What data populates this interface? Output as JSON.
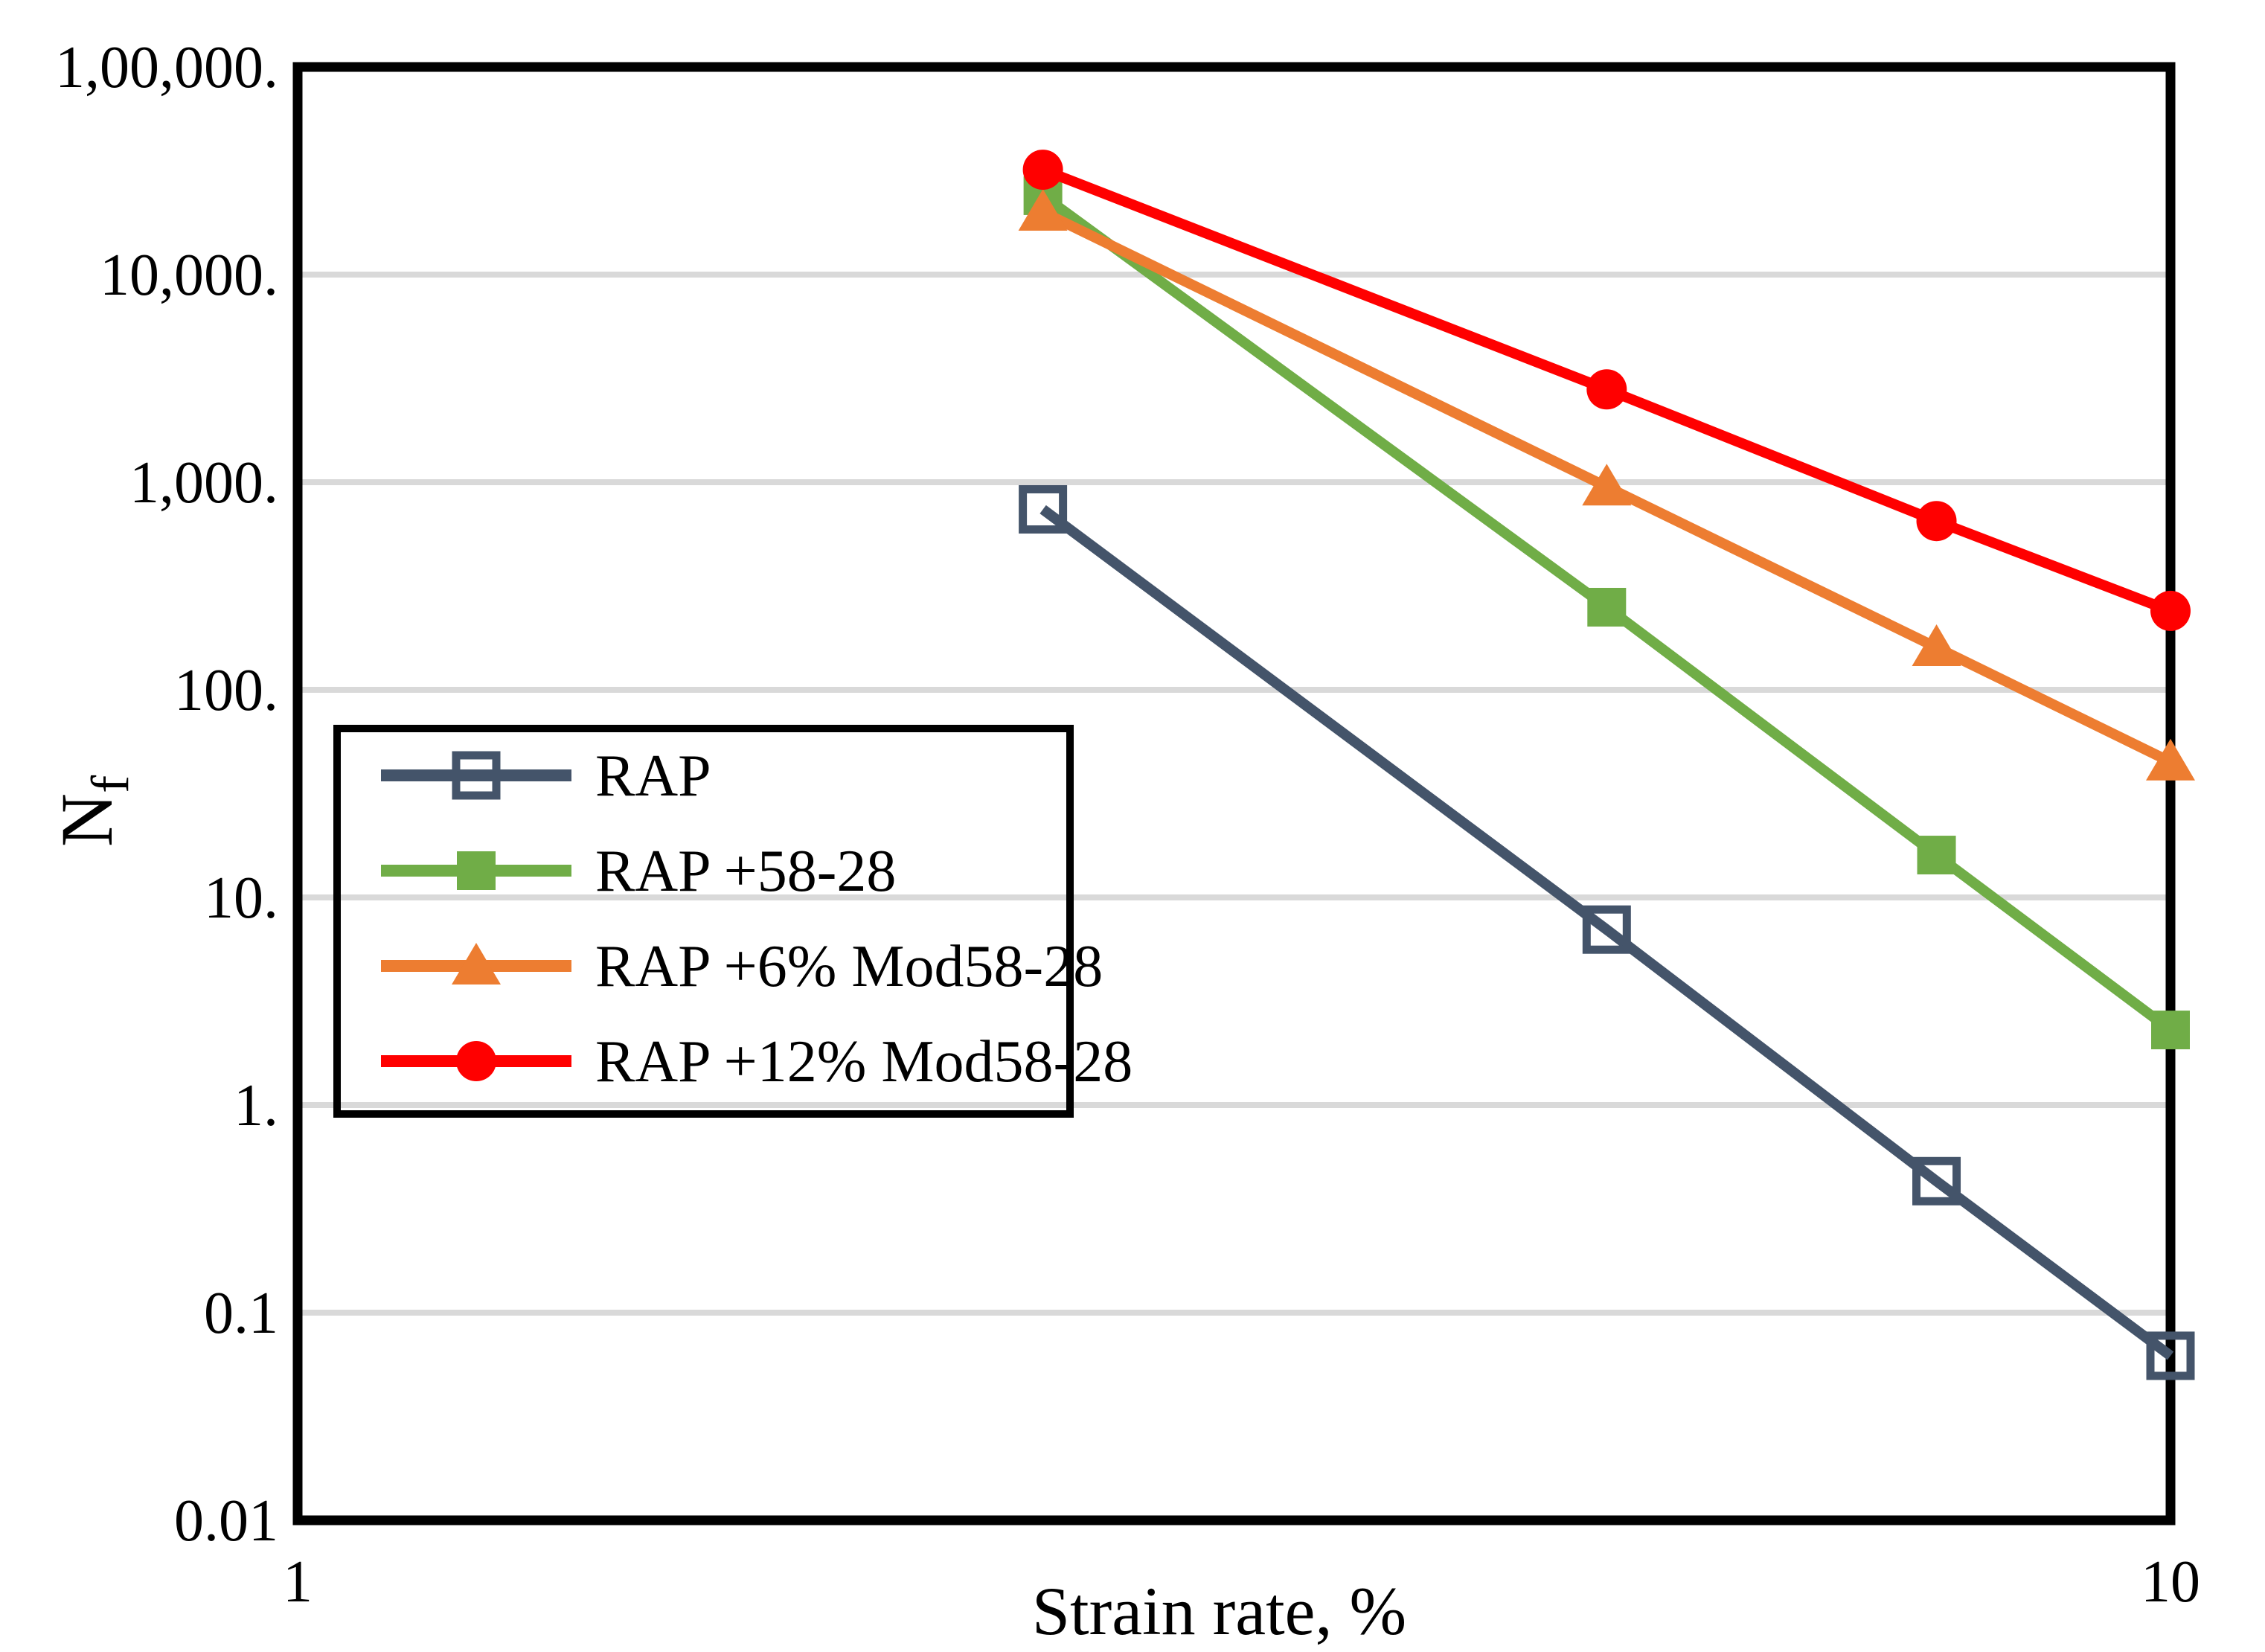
{
  "chart_data": {
    "type": "line",
    "title": "",
    "xlabel": "Strain rate, %",
    "ylabel": "Nf",
    "ylabel_base": "N",
    "ylabel_sub": "f",
    "x_scale": "log",
    "y_scale": "log",
    "xlim": [
      1,
      10
    ],
    "ylim": [
      0.01,
      100000
    ],
    "grid": true,
    "grid_color": "#D9D9D9",
    "axis_color": "#000000",
    "background_color": "#FFFFFF",
    "legend_position": "inside-left",
    "x": [
      2.5,
      5,
      7.5,
      10
    ],
    "series": [
      {
        "name": "RAP",
        "color": "#44546A",
        "marker": "square-open",
        "values": [
          740,
          7,
          0.43,
          0.062
        ]
      },
      {
        "name": "RAP +58-28",
        "color": "#70AD47",
        "marker": "square",
        "values": [
          24000,
          250,
          16,
          2.3
        ]
      },
      {
        "name": "RAP +6% Mod58-28",
        "color": "#ED7D31",
        "marker": "triangle",
        "values": [
          20000,
          950,
          160,
          45
        ]
      },
      {
        "name": "RAP +12% Mod58-28",
        "color": "#FF0000",
        "marker": "circle",
        "values": [
          32000,
          2800,
          650,
          240
        ]
      }
    ],
    "y_ticks": [
      {
        "label": "1,00,000.",
        "value": 100000
      },
      {
        "label": "10,000.",
        "value": 10000
      },
      {
        "label": "1,000.",
        "value": 1000
      },
      {
        "label": "100.",
        "value": 100
      },
      {
        "label": "10.",
        "value": 10
      },
      {
        "label": "1.",
        "value": 1
      },
      {
        "label": "0.1",
        "value": 0.1
      },
      {
        "label": "0.01",
        "value": 0.01
      }
    ],
    "x_ticks": [
      {
        "label": "1",
        "value": 1
      },
      {
        "label": "10",
        "value": 10
      }
    ],
    "gridline_values": [
      10000,
      1000,
      100,
      10,
      1,
      0.1
    ]
  }
}
